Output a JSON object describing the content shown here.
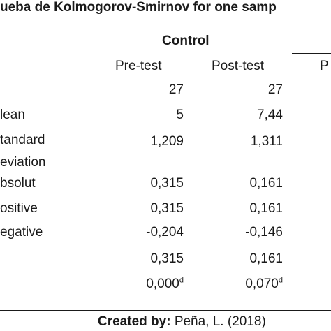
{
  "title": "ueba de Kolmogorov-Smirnov for one samp",
  "group": "Control",
  "columns": [
    "Pre-test",
    "Post-test",
    "P"
  ],
  "rows": [
    {
      "label": "",
      "pre": "27",
      "post": "27"
    },
    {
      "label": "lean",
      "pre": "5",
      "post": "7,44"
    },
    {
      "label": "tandard",
      "label2": "eviation",
      "pre": "1,209",
      "post": "1,311"
    },
    {
      "label": "bsolut",
      "pre": "0,315",
      "post": "0,161"
    },
    {
      "label": "ositive",
      "pre": "0,315",
      "post": "0,161"
    },
    {
      "label": "egative",
      "pre": "-0,204",
      "post": "-0,146"
    },
    {
      "label": "",
      "pre": "0,315",
      "post": "0,161"
    },
    {
      "label": "",
      "pre": "0,000",
      "pre_sup": "d",
      "post": "0,070",
      "post_sup": "d"
    }
  ],
  "credit": {
    "prefix": "Created by:",
    "text": "Peña, L. (2018)"
  }
}
